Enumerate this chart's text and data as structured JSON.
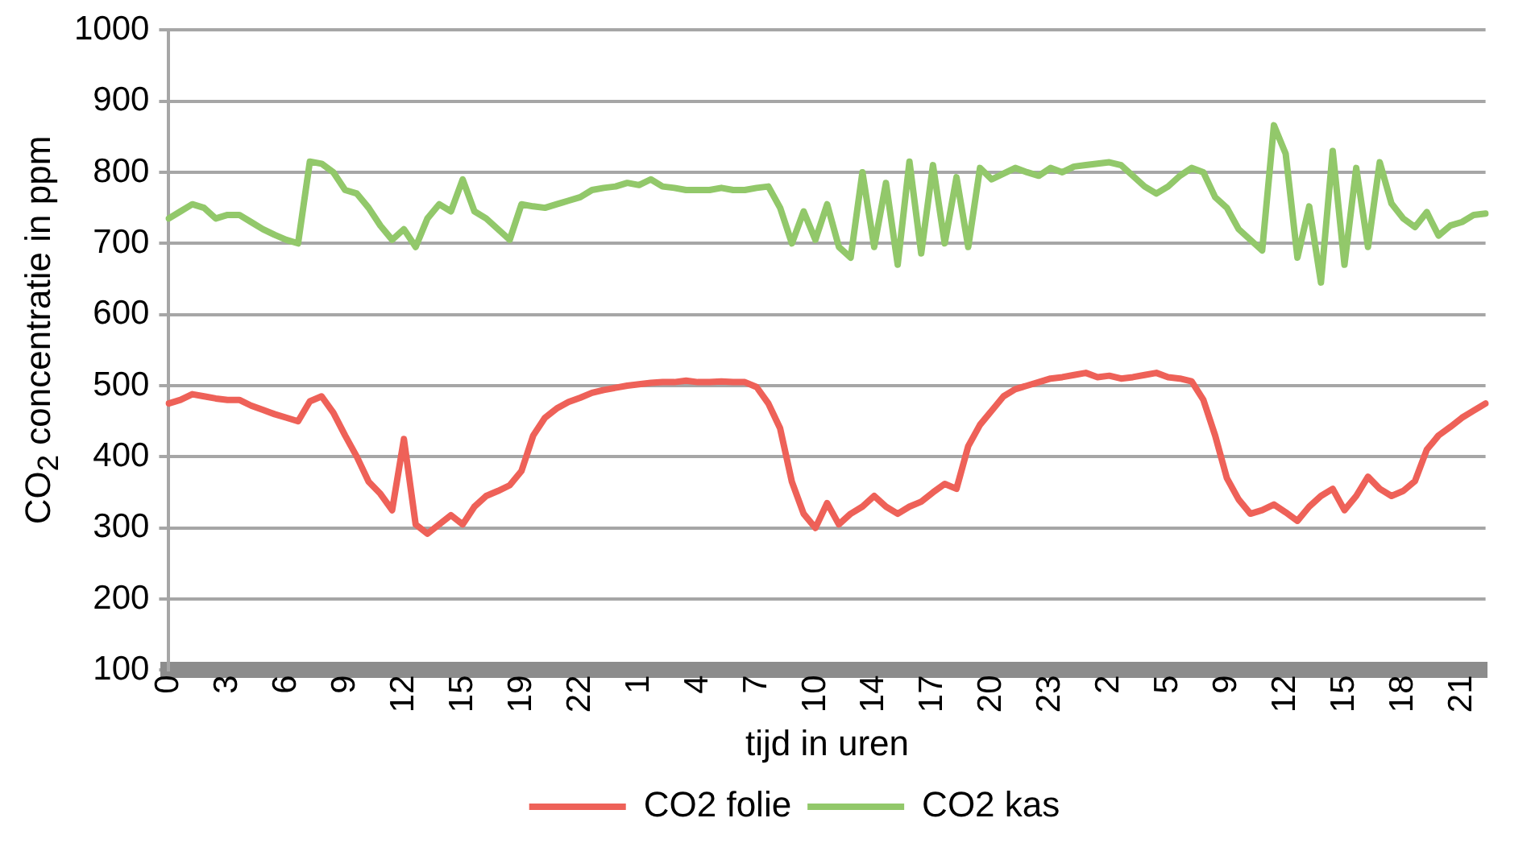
{
  "chart_data": {
    "type": "line",
    "xlabel": "tijd in uren",
    "ylabel": "CO$_{2}$ concentratie in ppm",
    "categories": [
      "0",
      null,
      null,
      null,
      null,
      "3",
      null,
      null,
      null,
      null,
      "6",
      null,
      null,
      null,
      null,
      "9",
      null,
      null,
      null,
      null,
      "12",
      null,
      null,
      null,
      null,
      "15",
      null,
      null,
      null,
      null,
      "19",
      null,
      null,
      null,
      null,
      "22",
      null,
      null,
      null,
      null,
      "1",
      null,
      null,
      null,
      null,
      "4",
      null,
      null,
      null,
      null,
      "7",
      null,
      null,
      null,
      null,
      "10",
      null,
      null,
      null,
      null,
      "14",
      null,
      null,
      null,
      null,
      "17",
      null,
      null,
      null,
      null,
      "20",
      null,
      null,
      null,
      null,
      "23",
      null,
      null,
      null,
      null,
      "2",
      null,
      null,
      null,
      null,
      "5",
      null,
      null,
      null,
      null,
      "9",
      null,
      null,
      null,
      null,
      "12",
      null,
      null,
      null,
      null,
      "15",
      null,
      null,
      null,
      null,
      "18",
      null,
      null,
      null,
      null,
      "21",
      null,
      null
    ],
    "ylim": [
      100,
      1000
    ],
    "yticks": [
      100,
      200,
      300,
      400,
      500,
      600,
      700,
      800,
      900,
      1000
    ],
    "grid": "y",
    "legend": "bottom",
    "marker": "none",
    "line_style": "solid",
    "series": [
      {
        "name": "CO2 folie",
        "color": "#ee6158",
        "values": [
          475,
          480,
          488,
          485,
          482,
          480,
          480,
          472,
          466,
          460,
          455,
          450,
          478,
          485,
          462,
          430,
          400,
          365,
          348,
          325,
          425,
          305,
          292,
          305,
          318,
          305,
          330,
          345,
          352,
          360,
          380,
          430,
          455,
          468,
          477,
          483,
          490,
          494,
          497,
          500,
          502,
          504,
          505,
          505,
          507,
          505,
          505,
          506,
          505,
          505,
          498,
          475,
          440,
          365,
          320,
          300,
          335,
          305,
          320,
          330,
          345,
          330,
          320,
          330,
          337,
          350,
          362,
          355,
          415,
          445,
          465,
          485,
          495,
          500,
          505,
          510,
          512,
          515,
          518,
          512,
          514,
          510,
          512,
          515,
          518,
          512,
          510,
          506,
          480,
          430,
          370,
          340,
          320,
          325,
          333,
          322,
          310,
          330,
          345,
          355,
          325,
          345,
          372,
          355,
          345,
          352,
          366,
          410,
          430,
          442,
          455,
          465,
          475
        ]
      },
      {
        "name": "CO2 kas",
        "color": "#92c86a",
        "values": [
          735,
          745,
          755,
          750,
          735,
          740,
          740,
          730,
          720,
          712,
          705,
          700,
          815,
          812,
          800,
          775,
          770,
          750,
          725,
          705,
          720,
          695,
          735,
          755,
          745,
          790,
          745,
          735,
          720,
          705,
          755,
          752,
          750,
          755,
          760,
          765,
          775,
          778,
          780,
          785,
          782,
          790,
          780,
          778,
          775,
          775,
          775,
          778,
          775,
          775,
          778,
          780,
          750,
          700,
          745,
          705,
          755,
          695,
          680,
          800,
          695,
          785,
          670,
          815,
          686,
          810,
          700,
          793,
          695,
          806,
          790,
          798,
          806,
          800,
          795,
          806,
          800,
          808,
          810,
          812,
          814,
          810,
          795,
          780,
          770,
          780,
          795,
          806,
          800,
          765,
          750,
          720,
          705,
          690,
          866,
          826,
          680,
          752,
          645,
          830,
          670,
          806,
          695,
          814,
          756,
          735,
          723,
          744,
          711,
          725,
          730,
          740,
          742
        ]
      }
    ]
  }
}
